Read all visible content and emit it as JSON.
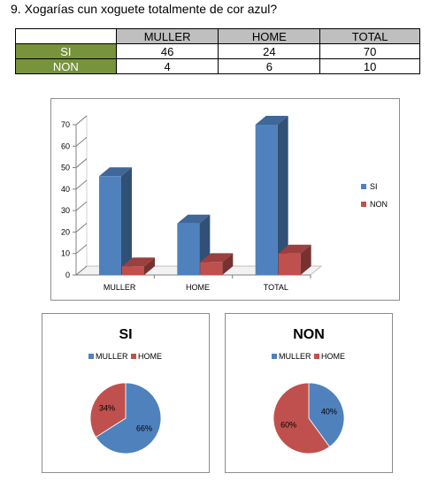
{
  "question": "9. Xogarías cun xoguete totalmente de cor azul?",
  "table": {
    "headers": [
      "",
      "MULLER",
      "HOME",
      "TOTAL"
    ],
    "rows": [
      {
        "label": "SI",
        "values": [
          "46",
          "24",
          "70"
        ]
      },
      {
        "label": "NON",
        "values": [
          "4",
          "6",
          "10"
        ]
      }
    ]
  },
  "colors": {
    "si": "#4f81bd",
    "non": "#c0504d",
    "row_label_bg": "#77933c",
    "header_bg": "#bfbfbf"
  },
  "chart_data": [
    {
      "type": "bar",
      "categories": [
        "MULLER",
        "HOME",
        "TOTAL"
      ],
      "series": [
        {
          "name": "SI",
          "values": [
            46,
            24,
            70
          ]
        },
        {
          "name": "NON",
          "values": [
            4,
            6,
            10
          ]
        }
      ],
      "ylim": [
        0,
        70
      ],
      "yticks": [
        "0",
        "10",
        "20",
        "30",
        "40",
        "50",
        "60",
        "70"
      ],
      "legend": "right",
      "grid": false
    },
    {
      "type": "pie",
      "title": "SI",
      "labels": [
        "MULLER",
        "HOME"
      ],
      "values": [
        66,
        34
      ],
      "data_labels": [
        "66%",
        "34%"
      ],
      "legend": "top"
    },
    {
      "type": "pie",
      "title": "NON",
      "labels": [
        "MULLER",
        "HOME"
      ],
      "values": [
        40,
        60
      ],
      "data_labels": [
        "40%",
        "60%"
      ],
      "legend": "top"
    }
  ]
}
